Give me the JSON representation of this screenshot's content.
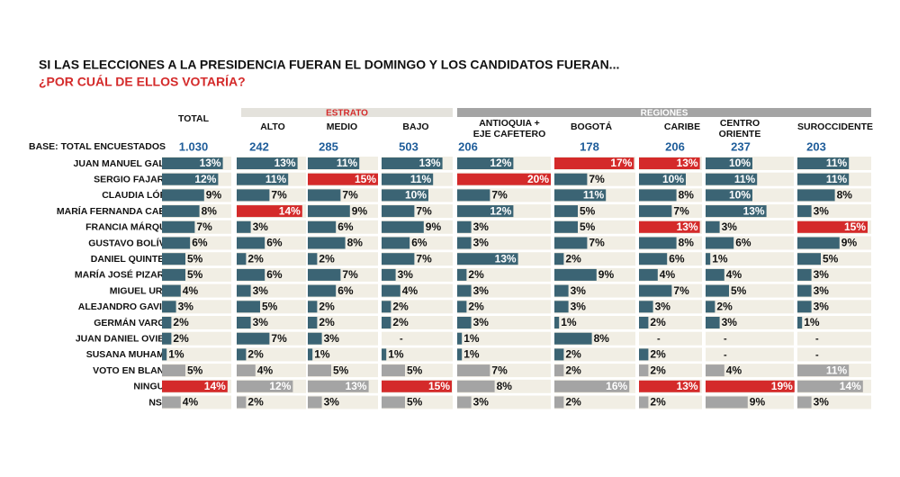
{
  "header": {
    "title": "SI LAS ELECCIONES A LA PRESIDENCIA FUERAN EL DOMINGO Y LOS CANDIDATOS FUERAN...",
    "subtitle": "¿POR CUÁL DE ELLOS VOTARÍA?"
  },
  "table": {
    "base_label": "BASE: TOTAL ENCUESTADOS",
    "total_column": {
      "lines": [
        "TOTAL"
      ],
      "base": {
        "value": 1030,
        "label": "1.030"
      }
    },
    "groups": [
      {
        "label": "ESTRATO",
        "columns": [
          {
            "lines": [
              "ALTO"
            ],
            "base": 242
          },
          {
            "lines": [
              "MEDIO"
            ],
            "base": 285
          },
          {
            "lines": [
              "BAJO"
            ],
            "base": 503
          }
        ]
      },
      {
        "label": "REGIONES",
        "columns": [
          {
            "lines": [
              "ANTIOQUIA +",
              "EJE CAFETERO"
            ],
            "base": 206
          },
          {
            "lines": [
              "BOGOTÁ"
            ],
            "base": 178
          },
          {
            "lines": [
              "CARIBE"
            ],
            "base": 206
          },
          {
            "lines": [
              "CENTRO",
              "ORIENTE"
            ],
            "base": 237
          },
          {
            "lines": [
              "SUROCCIDENTE"
            ],
            "base": 203
          }
        ]
      }
    ],
    "rows": [
      {
        "label": "JUAN MANUEL GALÁN",
        "values": [
          13,
          13,
          11,
          13,
          12,
          17,
          13,
          10,
          11
        ],
        "value_labels": [
          "13%",
          "13%",
          "11%",
          "13%",
          "12%",
          "17%",
          "13%",
          "10%",
          "11%"
        ],
        "colors": [
          "#3b6474",
          "#3b6474",
          "#3b6474",
          "#3b6474",
          "#3b6474",
          "#d42a2a",
          "#d42a2a",
          "#3b6474",
          "#3b6474"
        ]
      },
      {
        "label": "SERGIO FAJARDO",
        "values": [
          12,
          11,
          15,
          11,
          20,
          7,
          10,
          11,
          11
        ],
        "value_labels": [
          "12%",
          "11%",
          "15%",
          "11%",
          "20%",
          "7%",
          "10%",
          "11%",
          "11%"
        ],
        "colors": [
          "#3b6474",
          "#3b6474",
          "#d42a2a",
          "#3b6474",
          "#d42a2a",
          "#3b6474",
          "#3b6474",
          "#3b6474",
          "#3b6474"
        ]
      },
      {
        "label": "CLAUDIA LÓPEZ",
        "values": [
          9,
          7,
          7,
          10,
          7,
          11,
          8,
          10,
          8
        ],
        "value_labels": [
          "9%",
          "7%",
          "7%",
          "10%",
          "7%",
          "11%",
          "8%",
          "10%",
          "8%"
        ],
        "colors": [
          "#3b6474",
          "#3b6474",
          "#3b6474",
          "#3b6474",
          "#3b6474",
          "#3b6474",
          "#3b6474",
          "#3b6474",
          "#3b6474"
        ]
      },
      {
        "label": "MARÍA FERNANDA CABAL",
        "values": [
          8,
          14,
          9,
          7,
          12,
          5,
          7,
          13,
          3
        ],
        "value_labels": [
          "8%",
          "14%",
          "9%",
          "7%",
          "12%",
          "5%",
          "7%",
          "13%",
          "3%"
        ],
        "colors": [
          "#3b6474",
          "#d42a2a",
          "#3b6474",
          "#3b6474",
          "#3b6474",
          "#3b6474",
          "#3b6474",
          "#3b6474",
          "#3b6474"
        ]
      },
      {
        "label": "FRANCIA MÁRQUEZ",
        "values": [
          7,
          3,
          6,
          9,
          3,
          5,
          13,
          3,
          15
        ],
        "value_labels": [
          "7%",
          "3%",
          "6%",
          "9%",
          "3%",
          "5%",
          "13%",
          "3%",
          "15%"
        ],
        "colors": [
          "#3b6474",
          "#3b6474",
          "#3b6474",
          "#3b6474",
          "#3b6474",
          "#3b6474",
          "#d42a2a",
          "#3b6474",
          "#d42a2a"
        ]
      },
      {
        "label": "GUSTAVO BOLÍVAR",
        "values": [
          6,
          6,
          8,
          6,
          3,
          7,
          8,
          6,
          9
        ],
        "value_labels": [
          "6%",
          "6%",
          "8%",
          "6%",
          "3%",
          "7%",
          "8%",
          "6%",
          "9%"
        ],
        "colors": [
          "#3b6474",
          "#3b6474",
          "#3b6474",
          "#3b6474",
          "#3b6474",
          "#3b6474",
          "#3b6474",
          "#3b6474",
          "#3b6474"
        ]
      },
      {
        "label": "DANIEL QUINTERO",
        "values": [
          5,
          2,
          2,
          7,
          13,
          2,
          6,
          1,
          5
        ],
        "value_labels": [
          "5%",
          "2%",
          "2%",
          "7%",
          "13%",
          "2%",
          "6%",
          "1%",
          "5%"
        ],
        "colors": [
          "#3b6474",
          "#3b6474",
          "#3b6474",
          "#3b6474",
          "#3b6474",
          "#3b6474",
          "#3b6474",
          "#3b6474",
          "#3b6474"
        ]
      },
      {
        "label": "MARÍA JOSÉ PIZARRO",
        "values": [
          5,
          6,
          7,
          3,
          2,
          9,
          4,
          4,
          3
        ],
        "value_labels": [
          "5%",
          "6%",
          "7%",
          "3%",
          "2%",
          "9%",
          "4%",
          "4%",
          "3%"
        ],
        "colors": [
          "#3b6474",
          "#3b6474",
          "#3b6474",
          "#3b6474",
          "#3b6474",
          "#3b6474",
          "#3b6474",
          "#3b6474",
          "#3b6474"
        ]
      },
      {
        "label": "MIGUEL URIBE",
        "values": [
          4,
          3,
          6,
          4,
          3,
          3,
          7,
          5,
          3
        ],
        "value_labels": [
          "4%",
          "3%",
          "6%",
          "4%",
          "3%",
          "3%",
          "7%",
          "5%",
          "3%"
        ],
        "colors": [
          "#3b6474",
          "#3b6474",
          "#3b6474",
          "#3b6474",
          "#3b6474",
          "#3b6474",
          "#3b6474",
          "#3b6474",
          "#3b6474"
        ]
      },
      {
        "label": "ALEJANDRO GAVIRIA",
        "values": [
          3,
          5,
          2,
          2,
          2,
          3,
          3,
          2,
          3
        ],
        "value_labels": [
          "3%",
          "5%",
          "2%",
          "2%",
          "2%",
          "3%",
          "3%",
          "2%",
          "3%"
        ],
        "colors": [
          "#3b6474",
          "#3b6474",
          "#3b6474",
          "#3b6474",
          "#3b6474",
          "#3b6474",
          "#3b6474",
          "#3b6474",
          "#3b6474"
        ]
      },
      {
        "label": "GERMÁN VARGAS",
        "values": [
          2,
          3,
          2,
          2,
          3,
          1,
          2,
          3,
          1
        ],
        "value_labels": [
          "2%",
          "3%",
          "2%",
          "2%",
          "3%",
          "1%",
          "2%",
          "3%",
          "1%"
        ],
        "colors": [
          "#3b6474",
          "#3b6474",
          "#3b6474",
          "#3b6474",
          "#3b6474",
          "#3b6474",
          "#3b6474",
          "#3b6474",
          "#3b6474"
        ]
      },
      {
        "label": "JUAN DANIEL OVIEDO",
        "values": [
          2,
          7,
          3,
          null,
          1,
          8,
          null,
          null,
          null
        ],
        "value_labels": [
          "2%",
          "7%",
          "3%",
          "-",
          "1%",
          "8%",
          "-",
          "-",
          "-"
        ],
        "colors": [
          "#3b6474",
          "#3b6474",
          "#3b6474",
          "#3b6474",
          "#3b6474",
          "#3b6474",
          "#3b6474",
          "#3b6474",
          "#3b6474"
        ]
      },
      {
        "label": "SUSANA MUHAMAD",
        "values": [
          1,
          2,
          1,
          1,
          1,
          2,
          2,
          null,
          null
        ],
        "value_labels": [
          "1%",
          "2%",
          "1%",
          "1%",
          "1%",
          "2%",
          "2%",
          "-",
          "-"
        ],
        "colors": [
          "#3b6474",
          "#3b6474",
          "#3b6474",
          "#3b6474",
          "#3b6474",
          "#3b6474",
          "#3b6474",
          "#3b6474",
          "#3b6474"
        ]
      },
      {
        "label": "VOTO EN BLANCO",
        "values": [
          5,
          4,
          5,
          5,
          7,
          2,
          2,
          4,
          11
        ],
        "value_labels": [
          "5%",
          "4%",
          "5%",
          "5%",
          "7%",
          "2%",
          "2%",
          "4%",
          "11%"
        ],
        "colors": [
          "#a4a4a4",
          "#a4a4a4",
          "#a4a4a4",
          "#a4a4a4",
          "#a4a4a4",
          "#a4a4a4",
          "#a4a4a4",
          "#a4a4a4",
          "#a4a4a4"
        ]
      },
      {
        "label": "NINGUNO",
        "values": [
          14,
          12,
          13,
          15,
          8,
          16,
          13,
          19,
          14
        ],
        "value_labels": [
          "14%",
          "12%",
          "13%",
          "15%",
          "8%",
          "16%",
          "13%",
          "19%",
          "14%"
        ],
        "colors": [
          "#d42a2a",
          "#a4a4a4",
          "#a4a4a4",
          "#d42a2a",
          "#a4a4a4",
          "#a4a4a4",
          "#d42a2a",
          "#d42a2a",
          "#a4a4a4"
        ]
      },
      {
        "label": "NS/NR",
        "values": [
          4,
          2,
          3,
          5,
          3,
          2,
          2,
          9,
          3
        ],
        "value_labels": [
          "4%",
          "2%",
          "3%",
          "5%",
          "3%",
          "2%",
          "2%",
          "9%",
          "3%"
        ],
        "colors": [
          "#a4a4a4",
          "#a4a4a4",
          "#a4a4a4",
          "#a4a4a4",
          "#a4a4a4",
          "#a4a4a4",
          "#a4a4a4",
          "#a4a4a4",
          "#a4a4a4"
        ]
      }
    ]
  }
}
